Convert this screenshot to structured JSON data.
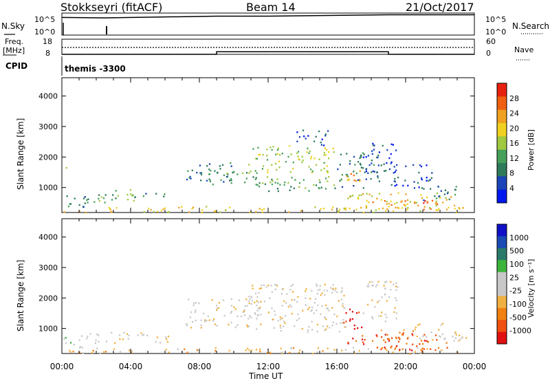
{
  "header": {
    "station": "Stokkseyri (fitACF)",
    "beam": "Beam 14",
    "date": "21/Oct/2017"
  },
  "cpid": "themis -3300",
  "labels": {
    "nsky": "N.Sky",
    "nsearch": "N.Search",
    "freq_line1": "Freq.",
    "freq_line2": "[MHz]",
    "nave": "Nave",
    "cpid": "CPID",
    "xlabel": "Time UT",
    "ylabel": "Slant Range [km]",
    "power_cb_label": "Power [dB]",
    "velocity_cb_label": "Velocity [m s⁻¹]"
  },
  "colors": {
    "background_scatter": "#c8c8c8",
    "power_scale": [
      "#0018f0",
      "#1a44b8",
      "#2e7a5a",
      "#46a05a",
      "#a0c840",
      "#f0d020",
      "#f0a020",
      "#f06010",
      "#e82010"
    ],
    "velocity_scale": [
      "#e01010",
      "#f05010",
      "#f08010",
      "#f0b040",
      "#c8c8c8",
      "#c8c8c8",
      "#3cb43c",
      "#2a7a6a",
      "#1a4ab4",
      "#1010c8"
    ]
  },
  "chart_data": [
    {
      "type": "line",
      "name": "nsky_nsearch_panel",
      "y_ticks_left": [
        "10^5",
        "10^0"
      ],
      "y_ticks_right": [
        "10^5",
        "10^0"
      ],
      "y_log": true,
      "series": [
        {
          "name": "N.Sky",
          "style": "solid",
          "x": [
            "00:00",
            "02:30",
            "09:00",
            "12:00",
            "19:00",
            "24:00"
          ],
          "y": [
            10000,
            8000,
            20000,
            20000,
            40000,
            40000
          ]
        },
        {
          "name": "N.Search",
          "style": "dotted",
          "x": [
            "00:00",
            "24:00"
          ],
          "y": [
            1,
            1
          ]
        }
      ]
    },
    {
      "type": "line",
      "name": "freq_nave_panel",
      "y_ticks_left": [
        "18",
        "8"
      ],
      "y_ticks_right": [
        "60",
        "0"
      ],
      "series": [
        {
          "style": "solid",
          "axis": "nave",
          "x": [
            "00:00",
            "09:00",
            "09:00",
            "19:00",
            "19:00",
            "24:00"
          ],
          "y": [
            0,
            0,
            10,
            10,
            0,
            0
          ]
        },
        {
          "name": "Nave",
          "style": "dotted",
          "axis": "nave",
          "x": [
            "00:00",
            "24:00"
          ],
          "y": [
            22,
            22
          ]
        }
      ]
    },
    {
      "type": "heatmap",
      "name": "power_panel",
      "xlabel": "Time UT",
      "ylabel": "Slant Range [km]",
      "xlim": [
        0,
        24
      ],
      "ylim": [
        180,
        4600
      ],
      "y_ticks": [
        1000,
        2000,
        3000,
        4000
      ],
      "x_ticks": [
        "00:00",
        "04:00",
        "08:00",
        "12:00",
        "16:00",
        "20:00",
        "00:00"
      ],
      "colorbar": {
        "label": "Power [dB]",
        "ticks": [
          4,
          8,
          12,
          16,
          20,
          24,
          28
        ]
      },
      "regions": [
        {
          "t": [
            0.0,
            1.5
          ],
          "r": [
            300,
            800
          ],
          "level": 2
        },
        {
          "t": [
            0.2,
            0.3
          ],
          "r": [
            1300,
            2150
          ],
          "level": 3
        },
        {
          "t": [
            1.4,
            3.2
          ],
          "r": [
            500,
            900
          ],
          "level": 3
        },
        {
          "t": [
            3.0,
            4.2
          ],
          "r": [
            500,
            950
          ],
          "level": 4
        },
        {
          "t": [
            4.2,
            6.3
          ],
          "r": [
            650,
            850
          ],
          "level": 2
        },
        {
          "t": [
            0.0,
            23.5
          ],
          "r": [
            200,
            400
          ],
          "level": 5
        },
        {
          "t": [
            7.2,
            10.0
          ],
          "r": [
            1200,
            1850
          ],
          "level": 2
        },
        {
          "t": [
            8.5,
            12.0
          ],
          "r": [
            1050,
            1600
          ],
          "level": 3
        },
        {
          "t": [
            10.8,
            15.8
          ],
          "r": [
            1500,
            2400
          ],
          "level": 4
        },
        {
          "t": [
            12.0,
            16.5
          ],
          "r": [
            900,
            1400
          ],
          "level": 3
        },
        {
          "t": [
            13.5,
            15.5
          ],
          "r": [
            2400,
            2900
          ],
          "level": 1
        },
        {
          "t": [
            16.0,
            18.5
          ],
          "r": [
            1000,
            2200
          ],
          "level": 2
        },
        {
          "t": [
            16.5,
            17.5
          ],
          "r": [
            1000,
            1650
          ],
          "level": 6
        },
        {
          "t": [
            17.5,
            19.5
          ],
          "r": [
            1500,
            2500
          ],
          "level": 1
        },
        {
          "t": [
            16.5,
            22.8
          ],
          "r": [
            350,
            850
          ],
          "level": 5
        },
        {
          "t": [
            18.0,
            20.5
          ],
          "r": [
            350,
            650
          ],
          "level": 6
        },
        {
          "t": [
            20.5,
            22.5
          ],
          "r": [
            300,
            600
          ],
          "level": 7
        },
        {
          "t": [
            21.0,
            23.3
          ],
          "r": [
            600,
            1100
          ],
          "level": 2
        },
        {
          "t": [
            19.0,
            21.5
          ],
          "r": [
            1000,
            1800
          ],
          "level": 1
        }
      ]
    },
    {
      "type": "heatmap",
      "name": "velocity_panel",
      "xlabel": "Time UT",
      "ylabel": "Slant Range [km]",
      "xlim": [
        0,
        24
      ],
      "ylim": [
        180,
        4600
      ],
      "y_ticks": [
        1000,
        2000,
        3000,
        4000
      ],
      "x_ticks": [
        "00:00",
        "04:00",
        "08:00",
        "12:00",
        "16:00",
        "20:00",
        "00:00"
      ],
      "colorbar": {
        "label": "Velocity [m s⁻¹]",
        "ticks": [
          1000,
          500,
          100,
          25,
          -25,
          -100,
          -500,
          -1000
        ]
      },
      "regions": [
        {
          "t": [
            0.0,
            1.5
          ],
          "r": [
            350,
            800
          ],
          "level": 5
        },
        {
          "t": [
            1.4,
            6.3
          ],
          "r": [
            550,
            900
          ],
          "level": 4
        },
        {
          "t": [
            0.0,
            23.5
          ],
          "r": [
            200,
            400
          ],
          "level": 3
        },
        {
          "t": [
            7.2,
            12.0
          ],
          "r": [
            1050,
            2000
          ],
          "level": 4
        },
        {
          "t": [
            10.8,
            16.5
          ],
          "r": [
            900,
            2500
          ],
          "level": 4
        },
        {
          "t": [
            16.3,
            17.5
          ],
          "r": [
            1000,
            1700
          ],
          "level": 0
        },
        {
          "t": [
            17.5,
            19.5
          ],
          "r": [
            1200,
            2600
          ],
          "level": 4
        },
        {
          "t": [
            16.5,
            22.5
          ],
          "r": [
            300,
            850
          ],
          "level": 1
        },
        {
          "t": [
            18.5,
            20.5
          ],
          "r": [
            600,
            1000
          ],
          "level": 2
        },
        {
          "t": [
            20.5,
            23.5
          ],
          "r": [
            600,
            1200
          ],
          "level": 4
        }
      ]
    }
  ]
}
